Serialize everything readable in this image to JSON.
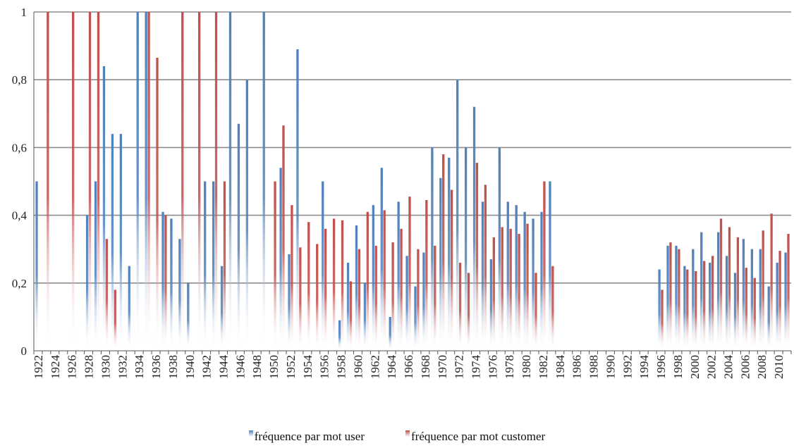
{
  "chart_data": {
    "type": "bar",
    "ylim": [
      0,
      1
    ],
    "yticks": [
      "0",
      "0,2",
      "0,4",
      "0,6",
      "0,8",
      "1"
    ],
    "grid": true,
    "legend_position": "bottom",
    "x": [
      1922,
      1923,
      1924,
      1925,
      1926,
      1927,
      1928,
      1929,
      1930,
      1931,
      1932,
      1933,
      1934,
      1935,
      1936,
      1937,
      1938,
      1939,
      1940,
      1941,
      1942,
      1943,
      1944,
      1945,
      1946,
      1947,
      1948,
      1949,
      1950,
      1951,
      1952,
      1953,
      1954,
      1955,
      1956,
      1957,
      1958,
      1959,
      1960,
      1961,
      1962,
      1963,
      1964,
      1965,
      1966,
      1967,
      1968,
      1969,
      1970,
      1971,
      1972,
      1973,
      1974,
      1975,
      1976,
      1977,
      1978,
      1979,
      1980,
      1981,
      1982,
      1983,
      1984,
      1985,
      1986,
      1987,
      1988,
      1989,
      1990,
      1991,
      1992,
      1993,
      1994,
      1995,
      1996,
      1997,
      1998,
      1999,
      2000,
      2001,
      2002,
      2003,
      2004,
      2005,
      2006,
      2007,
      2008,
      2009,
      2010,
      2011
    ],
    "xtick_labels": [
      "1922",
      "1924",
      "1926",
      "1928",
      "1930",
      "1932",
      "1934",
      "1936",
      "1938",
      "1940",
      "1942",
      "1944",
      "1946",
      "1948",
      "1950",
      "1952",
      "1954",
      "1956",
      "1958",
      "1960",
      "1962",
      "1964",
      "1966",
      "1968",
      "1970",
      "1972",
      "1974",
      "1976",
      "1978",
      "1980",
      "1982",
      "1984",
      "1986",
      "1988",
      "1990",
      "1992",
      "1994",
      "1996",
      "1998",
      "2000",
      "2002",
      "2004",
      "2006",
      "2008",
      "2010"
    ],
    "series": [
      {
        "name": "fréquence par mot user",
        "color": "#4f81bd",
        "values": [
          0.5,
          0,
          0,
          0,
          0,
          0,
          0.4,
          0.5,
          0.84,
          0.64,
          0.64,
          0.25,
          1,
          1,
          0,
          0.41,
          0.39,
          0.33,
          0.2,
          0,
          0.5,
          0.5,
          0.25,
          1,
          0.67,
          0.8,
          0,
          1,
          0,
          0.54,
          0.285,
          0.89,
          0,
          0,
          0.5,
          0,
          0.09,
          0.26,
          0.37,
          0.2,
          0.43,
          0.54,
          0.1,
          0.44,
          0.28,
          0.19,
          0.29,
          0.6,
          0.51,
          0.57,
          0.8,
          0.6,
          0.72,
          0.44,
          0.27,
          0.6,
          0.44,
          0.43,
          0.41,
          0.39,
          0.41,
          0.5,
          0,
          0,
          0,
          0,
          0,
          0,
          0,
          0,
          0,
          0,
          0,
          0,
          0.24,
          0.31,
          0.31,
          0.25,
          0.3,
          0.35,
          0.26,
          0.35,
          0.28,
          0.23,
          0.33,
          0.3,
          0.3,
          0.19,
          0.26,
          0.29
        ]
      },
      {
        "name": "fréquence par mot customer",
        "color": "#c0504d",
        "values": [
          0,
          1,
          0,
          0,
          1,
          0,
          1,
          1,
          0.33,
          0.18,
          0,
          0,
          0,
          1,
          0.865,
          0.4,
          0,
          1,
          0,
          1,
          0,
          1,
          0.5,
          0,
          0,
          0,
          0,
          0,
          0.5,
          0.665,
          0.43,
          0.305,
          0.38,
          0.315,
          0.36,
          0.39,
          0.385,
          0.205,
          0.3,
          0.41,
          0.31,
          0.415,
          0.32,
          0.36,
          0.455,
          0.3,
          0.445,
          0.31,
          0.58,
          0.475,
          0.26,
          0.23,
          0.555,
          0.49,
          0.335,
          0.365,
          0.36,
          0.345,
          0.375,
          0.23,
          0.5,
          0.25,
          0,
          0,
          0,
          0,
          0,
          0,
          0,
          0,
          0,
          0,
          0,
          0,
          0.18,
          0.32,
          0.3,
          0.24,
          0.235,
          0.265,
          0.28,
          0.39,
          0.365,
          0.335,
          0.245,
          0.215,
          0.355,
          0.405,
          0.295,
          0.345
        ]
      }
    ]
  }
}
